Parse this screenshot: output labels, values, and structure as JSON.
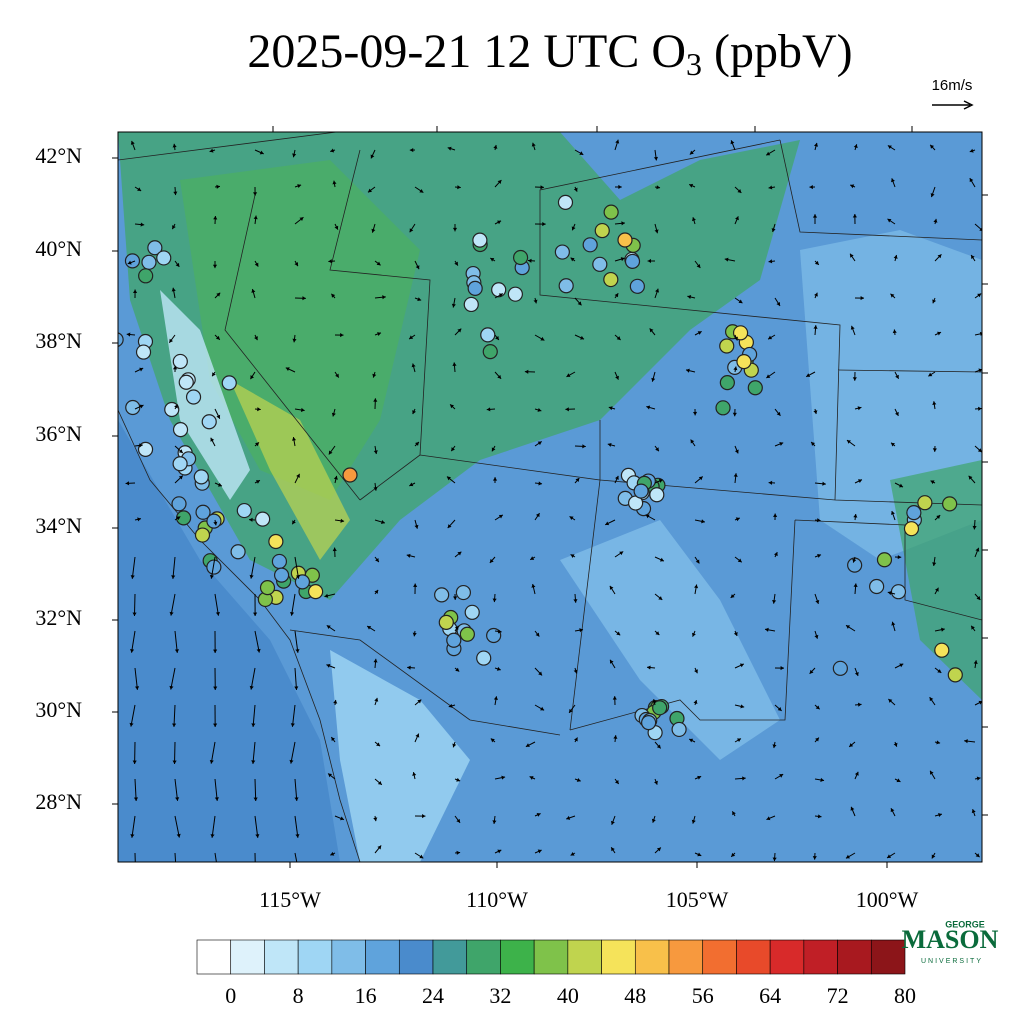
{
  "title": {
    "main": "2025-09-21 12 UTC O",
    "subscript": "3",
    "unit": "(ppbV)"
  },
  "wind_reference": "16m/s",
  "map": {
    "lat_labels": [
      "42°N",
      "40°N",
      "38°N",
      "36°N",
      "34°N",
      "32°N",
      "30°N",
      "28°N"
    ],
    "lon_labels": [
      "115°W",
      "110°W",
      "105°W",
      "100°W"
    ]
  },
  "colorbar": {
    "colors": [
      "#ffffff",
      "#def2fb",
      "#bfe6f8",
      "#9fd6f4",
      "#7fbde8",
      "#5fa3dc",
      "#4a8bcc",
      "#429a9a",
      "#3fa56a",
      "#3db24a",
      "#7fc24a",
      "#c0d44e",
      "#f5e35a",
      "#f8c04a",
      "#f7993e",
      "#f26e30",
      "#e84a2a",
      "#d82a2a",
      "#c01f26",
      "#a8191f",
      "#8c1519"
    ],
    "labels": [
      0,
      8,
      16,
      24,
      32,
      40,
      48,
      56,
      64,
      72,
      80
    ]
  },
  "logo": {
    "top": "GEORGE",
    "main": "MASON",
    "bottom": "UNIVERSITY"
  }
}
